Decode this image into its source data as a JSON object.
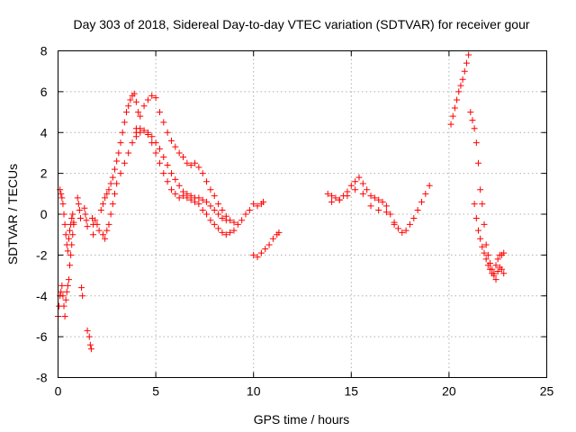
{
  "chart_data": {
    "type": "scatter",
    "title": "Day 303 of 2018, Sidereal Day-to-day VTEC variation (SDTVAR) for receiver gour",
    "xlabel": "GPS time / hours",
    "ylabel": "SDTVAR / TECUs",
    "xlim": [
      0,
      25
    ],
    "ylim": [
      -8,
      8
    ],
    "xticks": [
      0,
      5,
      10,
      15,
      20,
      25
    ],
    "yticks": [
      -8,
      -6,
      -4,
      -2,
      0,
      2,
      4,
      6,
      8
    ],
    "xtick_labels": [
      "0",
      "5",
      "10",
      "15",
      "20",
      "25"
    ],
    "ytick_labels": [
      "-8",
      "-6",
      "-4",
      "-2",
      "0",
      "2",
      "4",
      "6",
      "8"
    ],
    "grid": true,
    "marker": "plus",
    "color": "#ff0000",
    "series": [
      {
        "name": "SDTVAR",
        "x": [
          0.0,
          0.05,
          0.1,
          0.15,
          0.2,
          0.25,
          0.3,
          0.35,
          0.4,
          0.45,
          0.5,
          0.55,
          0.6,
          0.65,
          0.7,
          0.75,
          0.8,
          0.1,
          0.15,
          0.2,
          0.25,
          0.3,
          0.35,
          0.4,
          0.45,
          0.5,
          0.55,
          0.6,
          0.65,
          0.7,
          0.75,
          0.8,
          1.0,
          1.05,
          1.1,
          1.15,
          1.2,
          1.25,
          1.35,
          1.4,
          1.45,
          1.5,
          1.5,
          1.6,
          1.65,
          1.7,
          1.75,
          1.8,
          1.8,
          1.9,
          2.0,
          2.1,
          2.2,
          2.3,
          2.4,
          2.5,
          2.6,
          2.7,
          2.8,
          2.9,
          3.0,
          3.1,
          3.2,
          3.3,
          3.4,
          3.5,
          3.6,
          3.7,
          3.8,
          3.9,
          4.0,
          4.1,
          2.3,
          2.4,
          2.5,
          2.6,
          2.7,
          2.8,
          2.9,
          3.0,
          3.2,
          3.4,
          3.6,
          3.8,
          4.0,
          4.2,
          4.4,
          4.6,
          4.8,
          5.0,
          5.2,
          5.4,
          5.6,
          5.8,
          6.0,
          6.2,
          6.4,
          6.6,
          6.8,
          7.0,
          7.2,
          7.4,
          7.6,
          7.8,
          8.0,
          8.2,
          8.4,
          8.6,
          8.8,
          9.0,
          9.2,
          9.4,
          9.6,
          9.8,
          10.0,
          10.2,
          10.4,
          10.5,
          4.0,
          4.2,
          4.4,
          4.6,
          4.8,
          5.0,
          5.2,
          5.4,
          5.6,
          5.8,
          6.0,
          6.2,
          6.4,
          6.6,
          6.8,
          7.0,
          7.2,
          7.4,
          7.6,
          7.8,
          8.0,
          8.2,
          8.4,
          8.6,
          8.8,
          9.0,
          4.0,
          4.2,
          4.4,
          4.6,
          4.8,
          5.0,
          5.2,
          5.4,
          5.6,
          5.8,
          6.0,
          6.2,
          6.4,
          6.6,
          6.8,
          7.0,
          7.2,
          7.4,
          7.6,
          7.8,
          8.0,
          8.2,
          8.4,
          8.6,
          10.0,
          10.2,
          10.4,
          10.6,
          10.8,
          11.0,
          11.2,
          11.3,
          13.8,
          14.0,
          14.2,
          14.4,
          14.6,
          14.8,
          15.0,
          15.2,
          15.4,
          15.6,
          15.8,
          16.0,
          16.2,
          16.4,
          16.6,
          16.8,
          17.0,
          17.2,
          17.4,
          17.6,
          17.8,
          18.0,
          18.2,
          18.4,
          18.6,
          18.8,
          19.0,
          14.0,
          14.4,
          14.8,
          15.2,
          15.6,
          16.0,
          16.4,
          16.8,
          17.2,
          20.1,
          20.2,
          20.3,
          20.4,
          20.5,
          20.6,
          20.7,
          20.8,
          20.9,
          21.0,
          21.1,
          21.2,
          21.3,
          21.4,
          21.5,
          21.6,
          21.7,
          21.8,
          21.9,
          22.0,
          22.1,
          22.2,
          22.3,
          22.4,
          22.5,
          22.6,
          22.7,
          22.8,
          21.3,
          21.4,
          21.5,
          21.6,
          21.7,
          21.8,
          21.9,
          22.0,
          22.1,
          22.2,
          22.3,
          22.4,
          22.5,
          22.6,
          22.7,
          22.8
        ],
        "y": [
          -5.0,
          -4.5,
          -4.0,
          -3.8,
          -3.5,
          -4.0,
          -4.5,
          -5.0,
          -4.2,
          -3.8,
          -3.5,
          -3.2,
          -2.5,
          -2.0,
          -1.5,
          -1.0,
          -0.5,
          1.2,
          1.0,
          0.8,
          0.5,
          0.0,
          -0.5,
          -1.0,
          -1.5,
          -1.8,
          -1.2,
          -0.8,
          -0.5,
          -0.2,
          0.0,
          -0.4,
          0.8,
          0.5,
          0.2,
          -0.2,
          -3.6,
          -4.0,
          0.3,
          0.0,
          -0.3,
          -0.6,
          -5.7,
          -6.0,
          -6.4,
          -6.6,
          -0.2,
          -0.5,
          -1.0,
          -0.3,
          -0.5,
          -0.8,
          0.2,
          0.5,
          0.8,
          1.0,
          1.2,
          1.5,
          1.8,
          2.2,
          2.6,
          3.0,
          3.5,
          4.0,
          4.5,
          5.0,
          5.3,
          5.6,
          5.8,
          5.9,
          5.5,
          5.0,
          -1.0,
          -1.2,
          -0.8,
          -0.5,
          0.0,
          0.5,
          1.0,
          1.5,
          2.0,
          2.5,
          3.0,
          3.5,
          4.0,
          4.2,
          4.1,
          3.9,
          3.5,
          3.0,
          2.5,
          2.0,
          1.6,
          1.2,
          1.0,
          0.8,
          0.9,
          0.8,
          0.7,
          0.6,
          0.5,
          0.2,
          0.0,
          -0.3,
          -0.5,
          -0.7,
          -0.9,
          -1.0,
          -0.9,
          -0.8,
          -0.5,
          -0.3,
          0.0,
          0.2,
          0.5,
          0.4,
          0.5,
          0.6,
          4.2,
          4.8,
          5.3,
          5.6,
          5.8,
          5.7,
          5.0,
          4.5,
          4.0,
          3.6,
          3.3,
          3.0,
          2.8,
          2.5,
          2.4,
          2.5,
          2.3,
          2.0,
          1.6,
          1.2,
          0.9,
          0.5,
          0.2,
          -0.1,
          -0.3,
          -0.4,
          3.8,
          4.0,
          4.1,
          4.0,
          3.8,
          3.5,
          3.2,
          2.8,
          2.4,
          2.0,
          1.7,
          1.4,
          1.1,
          1.0,
          0.9,
          0.8,
          0.8,
          0.7,
          0.6,
          0.4,
          0.2,
          0.0,
          -0.2,
          -0.3,
          -2.0,
          -2.1,
          -1.9,
          -1.7,
          -1.5,
          -1.2,
          -1.0,
          -0.9,
          1.0,
          0.9,
          0.8,
          0.7,
          0.9,
          1.1,
          1.4,
          1.6,
          1.8,
          1.5,
          1.2,
          0.9,
          0.8,
          0.7,
          0.6,
          0.4,
          0.0,
          -0.4,
          -0.7,
          -0.9,
          -0.8,
          -0.5,
          -0.2,
          0.2,
          0.6,
          1.0,
          1.4,
          0.6,
          0.7,
          0.9,
          1.2,
          1.0,
          0.4,
          0.2,
          0.1,
          -0.5,
          4.4,
          4.8,
          5.2,
          5.6,
          6.0,
          6.3,
          6.6,
          7.0,
          7.4,
          7.8,
          5.0,
          4.6,
          4.2,
          3.5,
          2.5,
          1.2,
          0.5,
          -0.5,
          -1.5,
          -2.0,
          -2.4,
          -2.7,
          -2.9,
          -2.5,
          -2.2,
          -2.0,
          -2.0,
          -1.9,
          0.5,
          -0.2,
          -0.8,
          -1.2,
          -1.6,
          -1.9,
          -2.2,
          -2.5,
          -2.7,
          -2.9,
          -3.0,
          -3.2,
          -2.8,
          -2.6,
          -2.7,
          -2.9
        ]
      }
    ]
  }
}
